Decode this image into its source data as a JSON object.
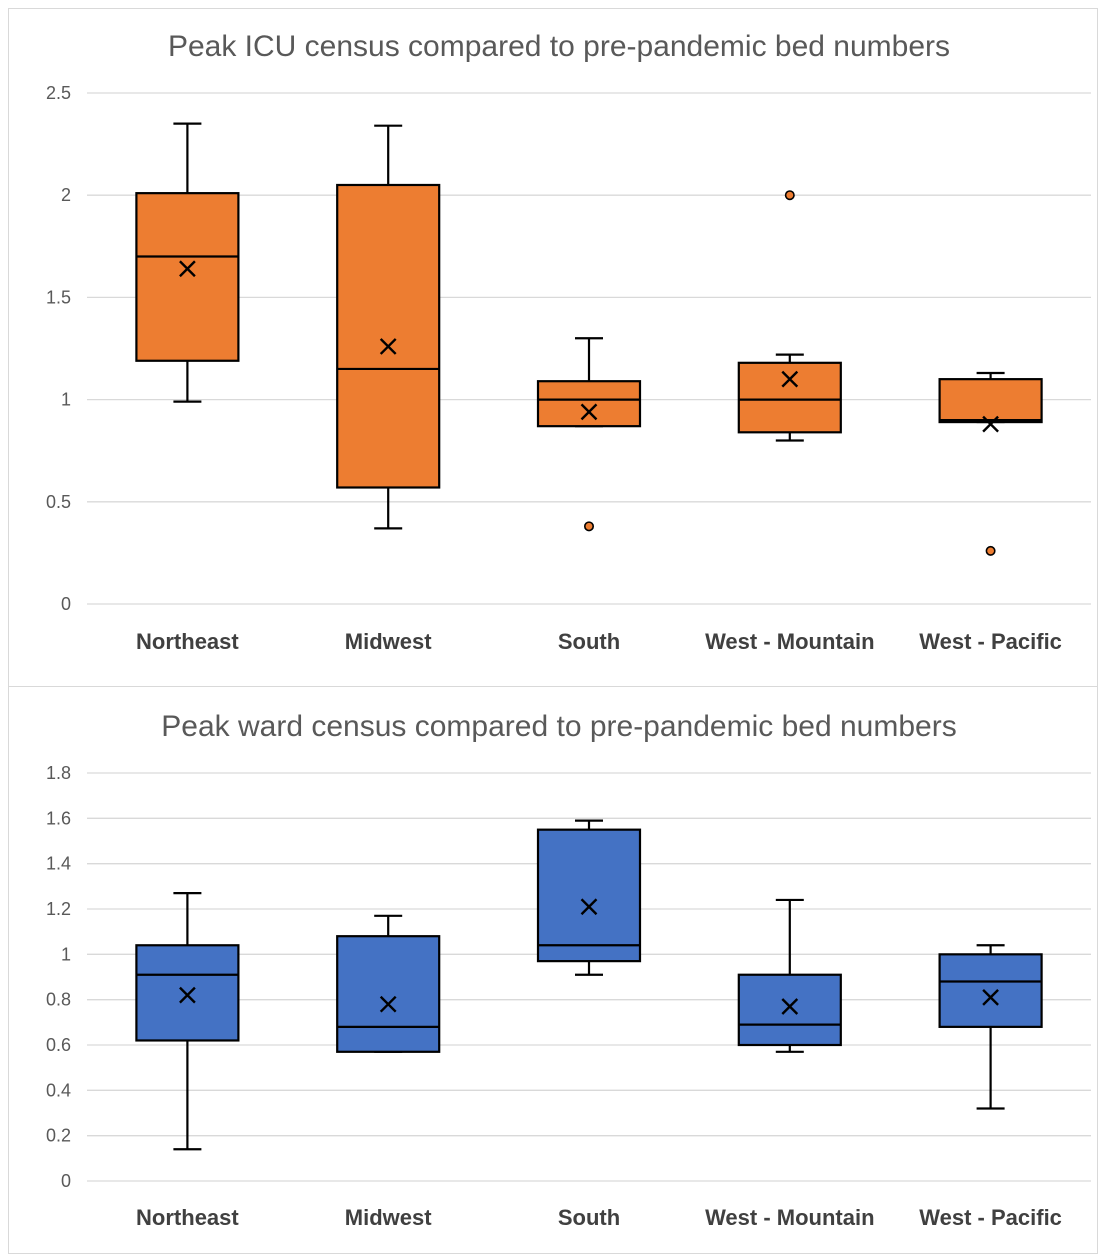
{
  "chart_data": [
    {
      "type": "box",
      "title": "Peak ICU census compared to pre-pandemic bed numbers",
      "xlabel": "",
      "ylabel": "",
      "ylim": [
        0,
        2.5
      ],
      "yticks": [
        0,
        0.5,
        1,
        1.5,
        2,
        2.5
      ],
      "ytick_labels": [
        "0",
        "0.5",
        "1",
        "1.5",
        "2",
        "2.5"
      ],
      "grid": true,
      "color": "#ED7D31",
      "categories": [
        "Northeast",
        "Midwest",
        "South",
        "West - Mountain",
        "West - Pacific"
      ],
      "boxes": [
        {
          "whisker_low": 0.99,
          "q1": 1.19,
          "median": 1.7,
          "q3": 2.01,
          "whisker_high": 2.35,
          "mean": 1.64,
          "outliers": []
        },
        {
          "whisker_low": 0.37,
          "q1": 0.57,
          "median": 1.15,
          "q3": 2.05,
          "whisker_high": 2.34,
          "mean": 1.26,
          "outliers": []
        },
        {
          "whisker_low": 0.87,
          "q1": 0.87,
          "median": 1.0,
          "q3": 1.09,
          "whisker_high": 1.3,
          "mean": 0.94,
          "outliers": [
            0.38
          ]
        },
        {
          "whisker_low": 0.8,
          "q1": 0.84,
          "median": 1.0,
          "q3": 1.18,
          "whisker_high": 1.22,
          "mean": 1.1,
          "outliers": [
            2.0
          ]
        },
        {
          "whisker_low": 0.89,
          "q1": 0.89,
          "median": 0.9,
          "q3": 1.1,
          "whisker_high": 1.13,
          "mean": 0.88,
          "outliers": [
            0.26
          ]
        }
      ]
    },
    {
      "type": "box",
      "title": "Peak ward census compared to pre-pandemic bed numbers",
      "xlabel": "",
      "ylabel": "",
      "ylim": [
        0,
        1.8
      ],
      "yticks": [
        0,
        0.2,
        0.4,
        0.6,
        0.8,
        1,
        1.2,
        1.4,
        1.6,
        1.8
      ],
      "ytick_labels": [
        "0",
        "0.2",
        "0.4",
        "0.6",
        "0.8",
        "1",
        "1.2",
        "1.4",
        "1.6",
        "1.8"
      ],
      "grid": true,
      "color": "#4472C4",
      "categories": [
        "Northeast",
        "Midwest",
        "South",
        "West - Mountain",
        "West - Pacific"
      ],
      "boxes": [
        {
          "whisker_low": 0.14,
          "q1": 0.62,
          "median": 0.91,
          "q3": 1.04,
          "whisker_high": 1.27,
          "mean": 0.82,
          "outliers": []
        },
        {
          "whisker_low": 0.57,
          "q1": 0.57,
          "median": 0.68,
          "q3": 1.08,
          "whisker_high": 1.17,
          "mean": 0.78,
          "outliers": []
        },
        {
          "whisker_low": 0.91,
          "q1": 0.97,
          "median": 1.04,
          "q3": 1.55,
          "whisker_high": 1.59,
          "mean": 1.21,
          "outliers": []
        },
        {
          "whisker_low": 0.57,
          "q1": 0.6,
          "median": 0.69,
          "q3": 0.91,
          "whisker_high": 1.24,
          "mean": 0.77,
          "outliers": []
        },
        {
          "whisker_low": 0.32,
          "q1": 0.68,
          "median": 0.88,
          "q3": 1.0,
          "whisker_high": 1.04,
          "mean": 0.81,
          "outliers": []
        }
      ]
    }
  ]
}
